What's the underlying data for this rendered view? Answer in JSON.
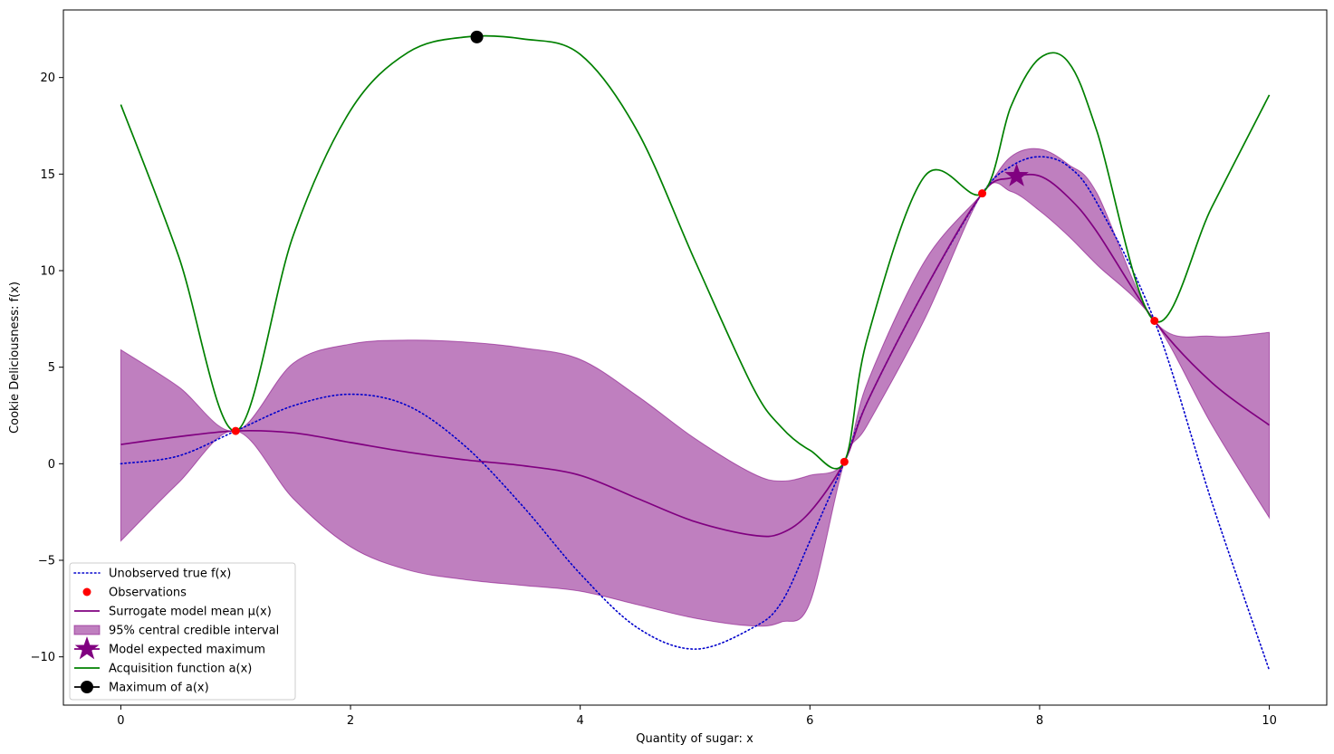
{
  "chart_data": {
    "type": "line",
    "xlabel": "Quantity of sugar: x",
    "ylabel": "Cookie Deliciousness: f(x)",
    "xlim": [
      -0.5,
      10.5
    ],
    "ylim": [
      -12.5,
      23.5
    ],
    "xticks": [
      0,
      2,
      4,
      6,
      8,
      10
    ],
    "yticks": [
      -10,
      -5,
      0,
      5,
      10,
      15,
      20
    ],
    "grid": false,
    "legend_position": "lower-left",
    "x": [
      0,
      0.5,
      1,
      1.5,
      2,
      2.5,
      3,
      3.5,
      4,
      4.5,
      5,
      5.5,
      5.75,
      6,
      6.3,
      6.5,
      7,
      7.5,
      7.75,
      8,
      8.25,
      8.5,
      9,
      9.5,
      10
    ],
    "series": [
      {
        "name": "Unobserved true f(x)",
        "color": "#0000cc",
        "style": "dotted",
        "values": [
          0.0,
          0.4,
          1.7,
          3.0,
          3.6,
          3.0,
          0.9,
          -2.2,
          -5.7,
          -8.5,
          -9.6,
          -8.5,
          -7.2,
          -4.0,
          0.1,
          3.2,
          9.0,
          14.0,
          15.4,
          15.9,
          15.4,
          13.5,
          7.4,
          -2.0,
          -10.7
        ]
      },
      {
        "name": "Surrogate model mean μ(x)",
        "color": "#800080",
        "style": "solid",
        "values": [
          1.0,
          1.4,
          1.7,
          1.6,
          1.1,
          0.6,
          0.2,
          -0.1,
          -0.6,
          -1.8,
          -3.0,
          -3.7,
          -3.6,
          -2.5,
          0.1,
          3.2,
          9.0,
          14.0,
          14.8,
          14.9,
          13.8,
          12.0,
          7.4,
          4.2,
          2.0
        ]
      },
      {
        "name": "Acquisition function a(x)",
        "color": "#008000",
        "style": "solid",
        "values": [
          18.6,
          10.8,
          1.7,
          11.8,
          18.3,
          21.3,
          22.1,
          22.0,
          21.2,
          17.2,
          10.5,
          4.0,
          1.9,
          0.7,
          0.1,
          6.5,
          14.9,
          14.0,
          18.5,
          21.0,
          20.8,
          17.2,
          7.4,
          13.3,
          19.1
        ]
      }
    ],
    "interval": {
      "name": "95% central credible interval",
      "color": "#800080",
      "alpha": 0.5,
      "lower": [
        -4.0,
        -1.0,
        1.7,
        -1.8,
        -4.3,
        -5.5,
        -6.0,
        -6.3,
        -6.6,
        -7.3,
        -8.0,
        -8.4,
        -8.2,
        -7.2,
        0.1,
        2.0,
        7.5,
        14.0,
        14.1,
        13.1,
        11.8,
        10.3,
        7.4,
        2.0,
        -2.8
      ],
      "upper": [
        5.9,
        4.0,
        1.7,
        5.2,
        6.2,
        6.4,
        6.3,
        6.0,
        5.4,
        3.5,
        1.3,
        -0.5,
        -0.9,
        -0.6,
        0.1,
        4.2,
        10.5,
        14.0,
        15.9,
        16.3,
        15.5,
        14.0,
        7.4,
        6.6,
        6.8
      ]
    },
    "observations": {
      "name": "Observations",
      "color": "#ff0000",
      "x": [
        1.0,
        6.3,
        7.5,
        9.0
      ],
      "y": [
        1.7,
        0.1,
        14.0,
        7.4
      ]
    },
    "expected_maximum": {
      "name": "Model expected maximum",
      "color": "#800080",
      "x": 7.8,
      "y": 14.9
    },
    "acquisition_maximum": {
      "name": "Maximum of a(x)",
      "color": "#000000",
      "x": 3.1,
      "y": 22.1
    }
  }
}
